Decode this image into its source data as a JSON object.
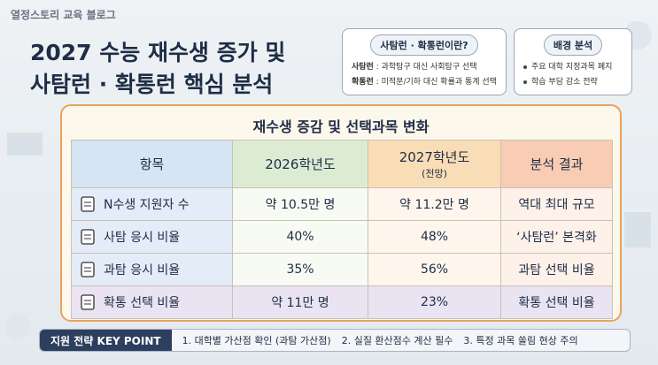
{
  "header": {
    "brand": "열정스토리 교육 블로그",
    "title_lines": [
      "2027 수능 재수생 증가 및",
      "사탐런 · 확통런 핵심 분석"
    ]
  },
  "definition_box": {
    "title": "사탐런 · 확통런이란?",
    "items": [
      {
        "term": "사탐런",
        "desc": " : 과학탐구 대신 사회탐구 선택"
      },
      {
        "term": "확통런",
        "desc": " : 미적분/기하 대신 확률과 통계 선택"
      }
    ]
  },
  "background_box": {
    "title": "배경 분석",
    "items": [
      "주요 대학 지정과목 폐지",
      "학습 부담 감소 전략"
    ]
  },
  "table": {
    "title": "재수생 증감 및 선택과목 변화",
    "headers": [
      "항목",
      "2026학년도",
      "2027학년도",
      "분석 결과"
    ],
    "header_note": "(전망)",
    "rows": [
      [
        "N수생 지원자 수",
        "약 10.5만 명",
        "약 11.2만 명",
        "역대 최대 규모"
      ],
      [
        "사탐 응시 비율",
        "40%",
        "48%",
        "‘사탐런’ 본격화"
      ],
      [
        "과탐 응시 비율",
        "35%",
        "56%",
        "과탐 선택 비율"
      ],
      [
        "확통 선택 비율",
        "약 11만 명",
        "23%",
        "확통 선택 비율"
      ]
    ]
  },
  "footer": {
    "label": "지원 전략 KEY POINT",
    "points": [
      "1. 대학별 가산점 확인 (과탐 가산점)",
      "2. 실질 환산점수 계산 필수",
      "3. 특정 과목 쏠림 현상 주의"
    ]
  }
}
